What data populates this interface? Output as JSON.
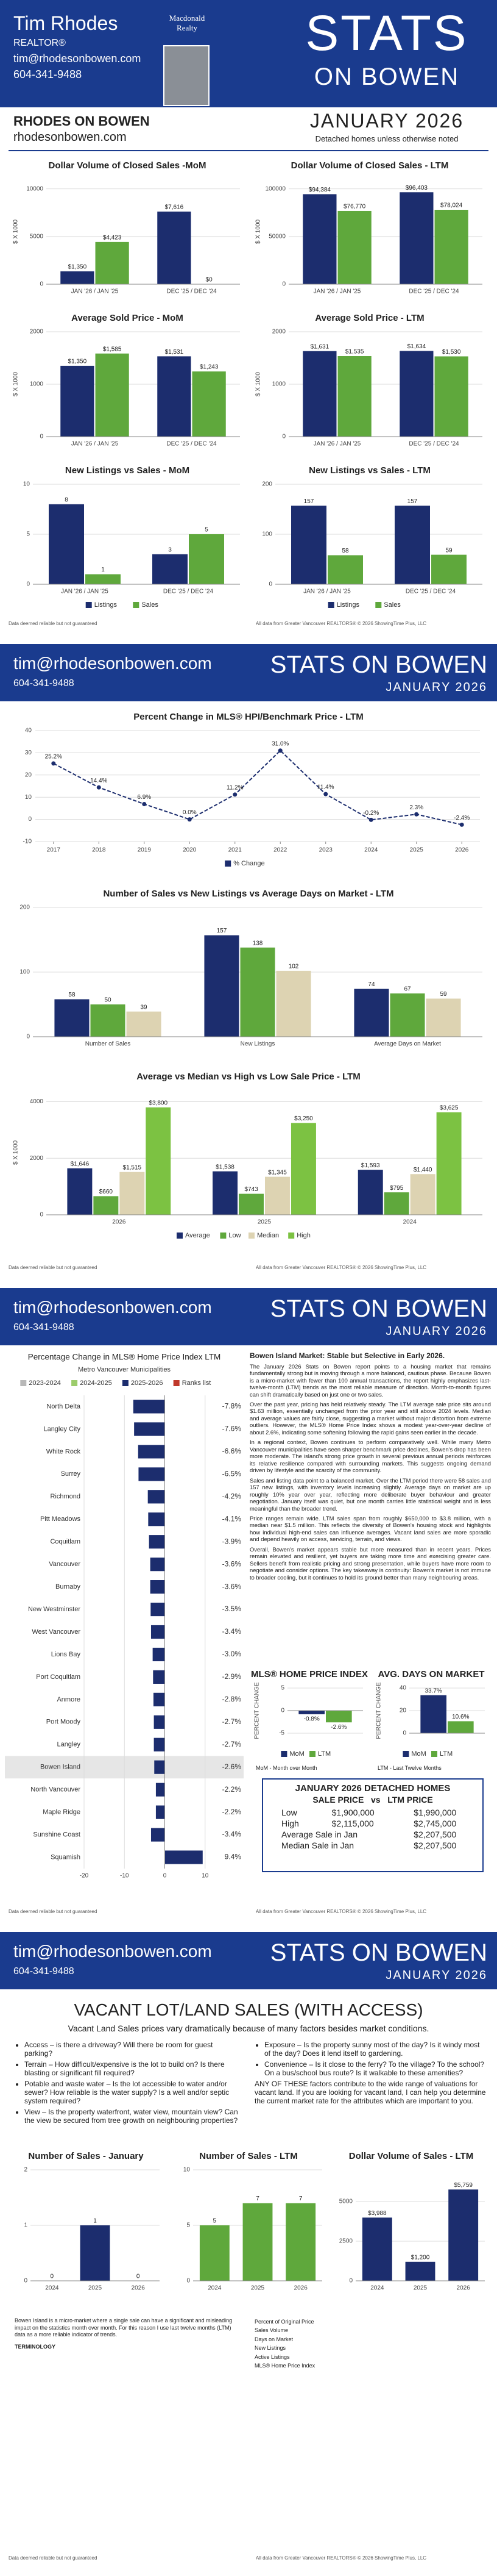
{
  "header": {
    "name": "Tim Rhodes",
    "role": "REALTOR®",
    "email": "tim@rhodesonbowen.com",
    "phone": "604-341-9488",
    "brokerage": "Macdonald Realty",
    "brand_top": "STATS",
    "brand_bottom": "ON BOWEN"
  },
  "intro": {
    "title": "RHODES ON BOWEN",
    "site": "rhodesonbowen.com",
    "month": "JANUARY 2026",
    "note": "Detached homes unless otherwise noted"
  },
  "page_header": {
    "email": "tim@rhodesonbowen.com",
    "phone": "604-341-9488",
    "brand": "STATS ON BOWEN",
    "month": "JANUARY 2026"
  },
  "footer": {
    "left": "Data deemed reliable but not guaranteed",
    "right": "All data from Greater Vancouver REALTORS® © 2026 ShowingTime Plus, LLC"
  },
  "chart_data": [
    {
      "type": "bar",
      "title": "Dollar Volume of Closed Sales -MoM",
      "ylabel": "$ X 1000",
      "categories": [
        "JAN '26 / JAN '25",
        "DEC '25 / DEC '24"
      ],
      "ylim": [
        0,
        11000
      ],
      "yticks": [
        0,
        5000,
        10000
      ],
      "series": [
        {
          "color": "#1c2d6e",
          "values": [
            1350,
            7616
          ],
          "value_labels": [
            "$1,350",
            "$7,616"
          ]
        },
        {
          "color": "#5fa83c",
          "values": [
            4423,
            0
          ],
          "value_labels": [
            "$4,423",
            "$0"
          ]
        }
      ]
    },
    {
      "type": "bar",
      "title": "Dollar Volume of Closed Sales - LTM",
      "ylabel": "$ X 1000",
      "categories": [
        "JAN '26 / JAN '25",
        "DEC '25 / DEC '24"
      ],
      "ylim": [
        0,
        110000
      ],
      "yticks": [
        0,
        50000,
        100000
      ],
      "series": [
        {
          "color": "#1c2d6e",
          "values": [
            94384,
            96403
          ],
          "value_labels": [
            "$94,384",
            "$96,403"
          ]
        },
        {
          "color": "#5fa83c",
          "values": [
            76770,
            78024
          ],
          "value_labels": [
            "$76,770",
            "$78,024"
          ]
        }
      ]
    },
    {
      "type": "bar",
      "title": "Average Sold Price - MoM",
      "ylabel": "$ X 1000",
      "categories": [
        "JAN '26 / JAN '25",
        "DEC '25 / DEC '24"
      ],
      "ylim": [
        0,
        2000
      ],
      "yticks": [
        0,
        1000,
        2000
      ],
      "series": [
        {
          "color": "#1c2d6e",
          "values": [
            1350,
            1531
          ],
          "value_labels": [
            "$1,350",
            "$1,531"
          ]
        },
        {
          "color": "#5fa83c",
          "values": [
            1585,
            1243
          ],
          "value_labels": [
            "$1,585",
            "$1,243"
          ]
        }
      ]
    },
    {
      "type": "bar",
      "title": "Average Sold Price - LTM",
      "ylabel": "$ X 1000",
      "categories": [
        "JAN '26 / JAN '25",
        "DEC '25 / DEC '24"
      ],
      "ylim": [
        0,
        2000
      ],
      "yticks": [
        0,
        1000,
        2000
      ],
      "series": [
        {
          "color": "#1c2d6e",
          "values": [
            1631,
            1634
          ],
          "value_labels": [
            "$1,631",
            "$1,634"
          ]
        },
        {
          "color": "#5fa83c",
          "values": [
            1535,
            1530
          ],
          "value_labels": [
            "$1,535",
            "$1,530"
          ]
        }
      ]
    },
    {
      "type": "bar",
      "title": "New Listings vs Sales - MoM",
      "categories": [
        "JAN '26 / JAN '25",
        "DEC '25 / DEC '24"
      ],
      "ylim": [
        0,
        10
      ],
      "yticks": [
        0,
        5,
        10
      ],
      "series": [
        {
          "name": "Listings",
          "color": "#1c2d6e",
          "values": [
            8,
            3
          ]
        },
        {
          "name": "Sales",
          "color": "#5fa83c",
          "values": [
            1,
            5
          ]
        }
      ]
    },
    {
      "type": "bar",
      "title": "New Listings vs Sales - LTM",
      "categories": [
        "JAN '26 / JAN '25",
        "DEC '25 / DEC '24"
      ],
      "ylim": [
        0,
        200
      ],
      "yticks": [
        0,
        100,
        200
      ],
      "series": [
        {
          "name": "Listings",
          "color": "#1c2d6e",
          "values": [
            157,
            157
          ]
        },
        {
          "name": "Sales",
          "color": "#5fa83c",
          "values": [
            58,
            59
          ]
        }
      ]
    },
    {
      "type": "line",
      "title": "Percent Change in MLS® HPI/Benchmark Price - LTM",
      "x": [
        2017,
        2018,
        2019,
        2020,
        2021,
        2022,
        2023,
        2024,
        2025,
        2026
      ],
      "xlim": [
        2016.6,
        2026.4
      ],
      "xticks": [
        2017,
        2018,
        2019,
        2020,
        2021,
        2022,
        2023,
        2024,
        2025,
        2026
      ],
      "ylim": [
        -10,
        40
      ],
      "yticks": [
        -10,
        0,
        10,
        20,
        30,
        40
      ],
      "series": [
        {
          "name": "% Change",
          "color": "#1c2d6e",
          "values": [
            25.2,
            14.4,
            6.9,
            0.0,
            11.2,
            31.0,
            11.4,
            -0.2,
            2.3,
            -2.4
          ],
          "value_labels": [
            "25.2%",
            "14.4%",
            "6.9%",
            "0.0%",
            "11.2%",
            "31.0%",
            "11.4%",
            "-0.2%",
            "2.3%",
            "-2.4%"
          ]
        }
      ]
    },
    {
      "type": "bar",
      "title": "Number of Sales vs New Listings vs Average Days on Market - LTM",
      "categories": [
        "Number of Sales",
        "New Listings",
        "Average Days on Market"
      ],
      "ylim": [
        0,
        200
      ],
      "yticks": [
        0,
        100,
        200
      ],
      "series": [
        {
          "color": "#1c2d6e",
          "values": [
            58,
            157,
            74
          ]
        },
        {
          "color": "#5fa83c",
          "values": [
            50,
            138,
            67
          ]
        },
        {
          "color": "#ddd3b2",
          "values": [
            39,
            102,
            59
          ]
        }
      ]
    },
    {
      "type": "bar",
      "title": "Average vs Median vs High vs Low Sale Price - LTM",
      "ylabel": "$ X 1000",
      "categories": [
        "2026",
        "2025",
        "2024"
      ],
      "ylim": [
        0,
        4400
      ],
      "yticks": [
        0,
        2000,
        4000
      ],
      "series": [
        {
          "name": "Average",
          "color": "#1c2d6e",
          "values": [
            1646,
            1538,
            1593
          ],
          "value_labels": [
            "$1,646",
            "$1,538",
            "$1,593"
          ]
        },
        {
          "name": "Low",
          "color": "#5fa83c",
          "values": [
            660,
            743,
            795
          ],
          "value_labels": [
            "$660",
            "$743",
            "$795"
          ]
        },
        {
          "name": "Median",
          "color": "#ddd3b2",
          "values": [
            1515,
            1345,
            1440
          ],
          "value_labels": [
            "$1,515",
            "$1,345",
            "$1,440"
          ]
        },
        {
          "name": "High",
          "color": "#7cc242",
          "values": [
            3800,
            3250,
            3625
          ],
          "value_labels": [
            "$3,800",
            "$3,250",
            "$3,625"
          ]
        }
      ]
    },
    {
      "type": "hbar",
      "title": "Percentage Change in MLS® Home Price Index LTM",
      "subtitle": "Metro Vancouver Municipalities",
      "legend": [
        {
          "name": "2023-2024",
          "color": "#b8b8b8"
        },
        {
          "name": "2024-2025",
          "color": "#9ccc6b"
        },
        {
          "name": "2025-2026",
          "color": "#1c2d6e"
        },
        {
          "name": "Ranks list",
          "color": "#c0392b"
        }
      ],
      "categories": [
        "North Delta",
        "Langley City",
        "White Rock",
        "Surrey",
        "Richmond",
        "Pitt Meadows",
        "Coquitlam",
        "Vancouver",
        "Burnaby",
        "New Westminster",
        "West Vancouver",
        "Lions Bay",
        "Port Coquitlam",
        "Anmore",
        "Port Moody",
        "Langley",
        "Bowen Island",
        "North Vancouver",
        "Maple Ridge",
        "Sunshine Coast",
        "Squamish"
      ],
      "values": [
        -7.8,
        -7.6,
        -6.6,
        -6.5,
        -4.2,
        -4.1,
        -3.9,
        -3.6,
        -3.6,
        -3.5,
        -3.4,
        -3.0,
        -2.9,
        -2.8,
        -2.7,
        -2.7,
        -2.6,
        -2.2,
        -2.2,
        -3.4,
        9.4
      ],
      "value_labels": [
        "-7.8%",
        "-7.6%",
        "-6.6%",
        "-6.5%",
        "-4.2%",
        "-4.1%",
        "-3.9%",
        "-3.6%",
        "-3.6%",
        "-3.5%",
        "-3.4%",
        "-3.0%",
        "-2.9%",
        "-2.8%",
        "-2.7%",
        "-2.7%",
        "-2.6%",
        "-2.2%",
        "-2.2%",
        "-3.4%",
        "9.4%"
      ],
      "color": "#1c2d6e",
      "xlim": [
        -20,
        12
      ],
      "xticks": [
        -20,
        -10,
        0,
        10
      ]
    },
    {
      "type": "bar",
      "title": "MLS® HOME PRICE INDEX",
      "ylabel": "PERCENT CHANGE",
      "categories": [
        null
      ],
      "ylim": [
        -5,
        5
      ],
      "yticks": [
        -5,
        0,
        5
      ],
      "series": [
        {
          "name": "MoM",
          "color": "#1c2d6e",
          "values": [
            -0.8
          ],
          "value_labels": [
            "-0.8%"
          ]
        },
        {
          "name": "LTM",
          "color": "#5fa83c",
          "values": [
            -2.6
          ],
          "value_labels": [
            "-2.6%"
          ]
        }
      ]
    },
    {
      "type": "bar",
      "title": "AVG. DAYS ON MARKET",
      "ylabel": "PERCENT CHANGE",
      "categories": [
        null
      ],
      "ylim": [
        0,
        40
      ],
      "yticks": [
        0,
        20,
        40
      ],
      "series": [
        {
          "name": "MoM",
          "color": "#1c2d6e",
          "values": [
            33.7
          ],
          "value_labels": [
            "33.7%"
          ]
        },
        {
          "name": "LTM",
          "color": "#5fa83c",
          "values": [
            10.6
          ],
          "value_labels": [
            "10.6%"
          ]
        }
      ]
    },
    {
      "type": "bar",
      "title": "Number of Sales - January",
      "categories": [
        "2024",
        "2025",
        "2026"
      ],
      "ylim": [
        0,
        2
      ],
      "yticks": [
        0,
        1,
        2
      ],
      "series": [
        {
          "color": "#1c2d6e",
          "values": [
            0,
            1,
            0
          ]
        }
      ]
    },
    {
      "type": "bar",
      "title": "Number of Sales - LTM",
      "categories": [
        "2024",
        "2025",
        "2026"
      ],
      "ylim": [
        0,
        10
      ],
      "yticks": [
        0,
        5,
        10
      ],
      "series": [
        {
          "color": "#5fa83c",
          "values": [
            5,
            7,
            7
          ]
        }
      ]
    },
    {
      "type": "bar",
      "title": "Dollar Volume of Sales - LTM",
      "categories": [
        "2024",
        "2025",
        "2026"
      ],
      "ylim": [
        0,
        7000
      ],
      "yticks": [
        0,
        2500,
        5000
      ],
      "series": [
        {
          "color": "#1c2d6e",
          "values": [
            3988,
            1200,
            5759
          ],
          "value_labels": [
            "$3,988",
            "$1,200",
            "$5,759"
          ]
        }
      ]
    }
  ],
  "hpi_notes": {
    "mom": "MoM - Month over Month",
    "ltm": "LTM - Last Twelve Months"
  },
  "market_report": {
    "title": "Bowen Island Market: Stable but Selective in Early 2026.",
    "paragraphs": [
      "The January 2026 Stats on Bowen report points to a housing market that remains fundamentally strong but is moving through a more balanced, cautious phase. Because Bowen is a micro-market with fewer than 100 annual transactions, the report highly emphasizes last-twelve-month (LTM) trends as the most reliable measure of direction. Month-to-month figures can shift dramatically based on just one or two sales.",
      "Over the past year, pricing has held relatively steady. The LTM average sale price sits around $1.63 million, essentially unchanged from the prior year and still above 2024 levels. Median and average values are fairly close, suggesting a market without major distortion from extreme outliers. However, the MLS® Home Price Index shows a modest year-over-year decline of about 2.6%, indicating some softening following the rapid gains seen earlier in the decade.",
      "In a regional context, Bowen continues to perform comparatively well. While many Metro Vancouver municipalities have seen sharper benchmark price declines, Bowen's drop has been more moderate. The island's strong price growth in several previous annual periods reinforces its relative resilience compared with surrounding markets. This suggests ongoing demand driven by lifestyle and the scarcity of the community.",
      "Sales and listing data point to a balanced market. Over the LTM period there were 58 sales and 157 new listings, with inventory levels increasing slightly. Average days on market are up roughly 10% year over year, reflecting more deliberate buyer behaviour and greater negotiation. January itself was quiet, but one month carries little statistical weight and is less meaningful than the broader trend.",
      "Price ranges remain wide. LTM sales span from roughly $650,000 to $3.8 million, with a median near $1.5 million. This reflects the diversity of Bowen's housing stock and highlights how individual high-end sales can influence averages. Vacant land sales are more sporadic and depend heavily on access, servicing, terrain, and views.",
      "Overall, Bowen's market appears stable but more measured than in recent years. Prices remain elevated and resilient, yet buyers are taking more time and exercising greater care. Sellers benefit from realistic pricing and strong presentation, while buyers have more room to negotiate and consider options. The key takeaway is continuity: Bowen's market is not immune to broader cooling, but it continues to hold its ground better than many neighbouring areas."
    ]
  },
  "summary_box": {
    "title": "JANUARY 2026  DETACHED HOMES",
    "heading": "SALE PRICE   vs   LTM PRICE",
    "rows": [
      [
        "Low",
        "$1,900,000",
        "$1,990,000"
      ],
      [
        "High",
        "$2,115,000",
        "$2,745,000"
      ],
      [
        "Average Sale in Jan",
        "$2,207,500"
      ],
      [
        "Median Sale in Jan",
        "$2,207,500"
      ]
    ]
  },
  "vacant": {
    "title": "VACANT LOT/LAND SALES (WITH ACCESS)",
    "subtitle": "Vacant Land Sales prices vary dramatically because of many factors besides market conditions.",
    "left": [
      "Access – is there a driveway? Will there be room for guest parking?",
      "Terrain – How difficult/expensive is the lot to build on? Is there blasting or significant fill required?",
      "Potable and waste water – Is the lot accessible to water and/or sewer? How reliable is the water supply? Is a well and/or septic system required?",
      "View – Is the property waterfront, water view, mountain view? Can the view be secured from tree growth on neighbouring properties?"
    ],
    "right": [
      "Exposure – Is the property sunny most of the day? Is it windy most of the day? Does it lend itself to gardening.",
      "Convenience – Is it close to the ferry? To the village? To the school? On a bus/school bus route? Is it walkable to these amenities?"
    ],
    "closing": "ANY OF THESE factors contribute to the wide range of valuations for vacant land. If you are looking for vacant land, I can help you determine the current market rate for the attributes which are important to you."
  },
  "terminology": {
    "intro": "Bowen Island is a micro-market where a single sale can have a significant and misleading impact on the statistics month over month. For this reason I use last twelve months (LTM) data as a more reliable indicator of trends.",
    "title": "TERMINOLOGY",
    "terms": [
      "Percent of Original Price",
      "Sales Volume",
      "Days on Market",
      "New Listings",
      "Active Listings",
      "MLS® Home Price Index"
    ]
  }
}
